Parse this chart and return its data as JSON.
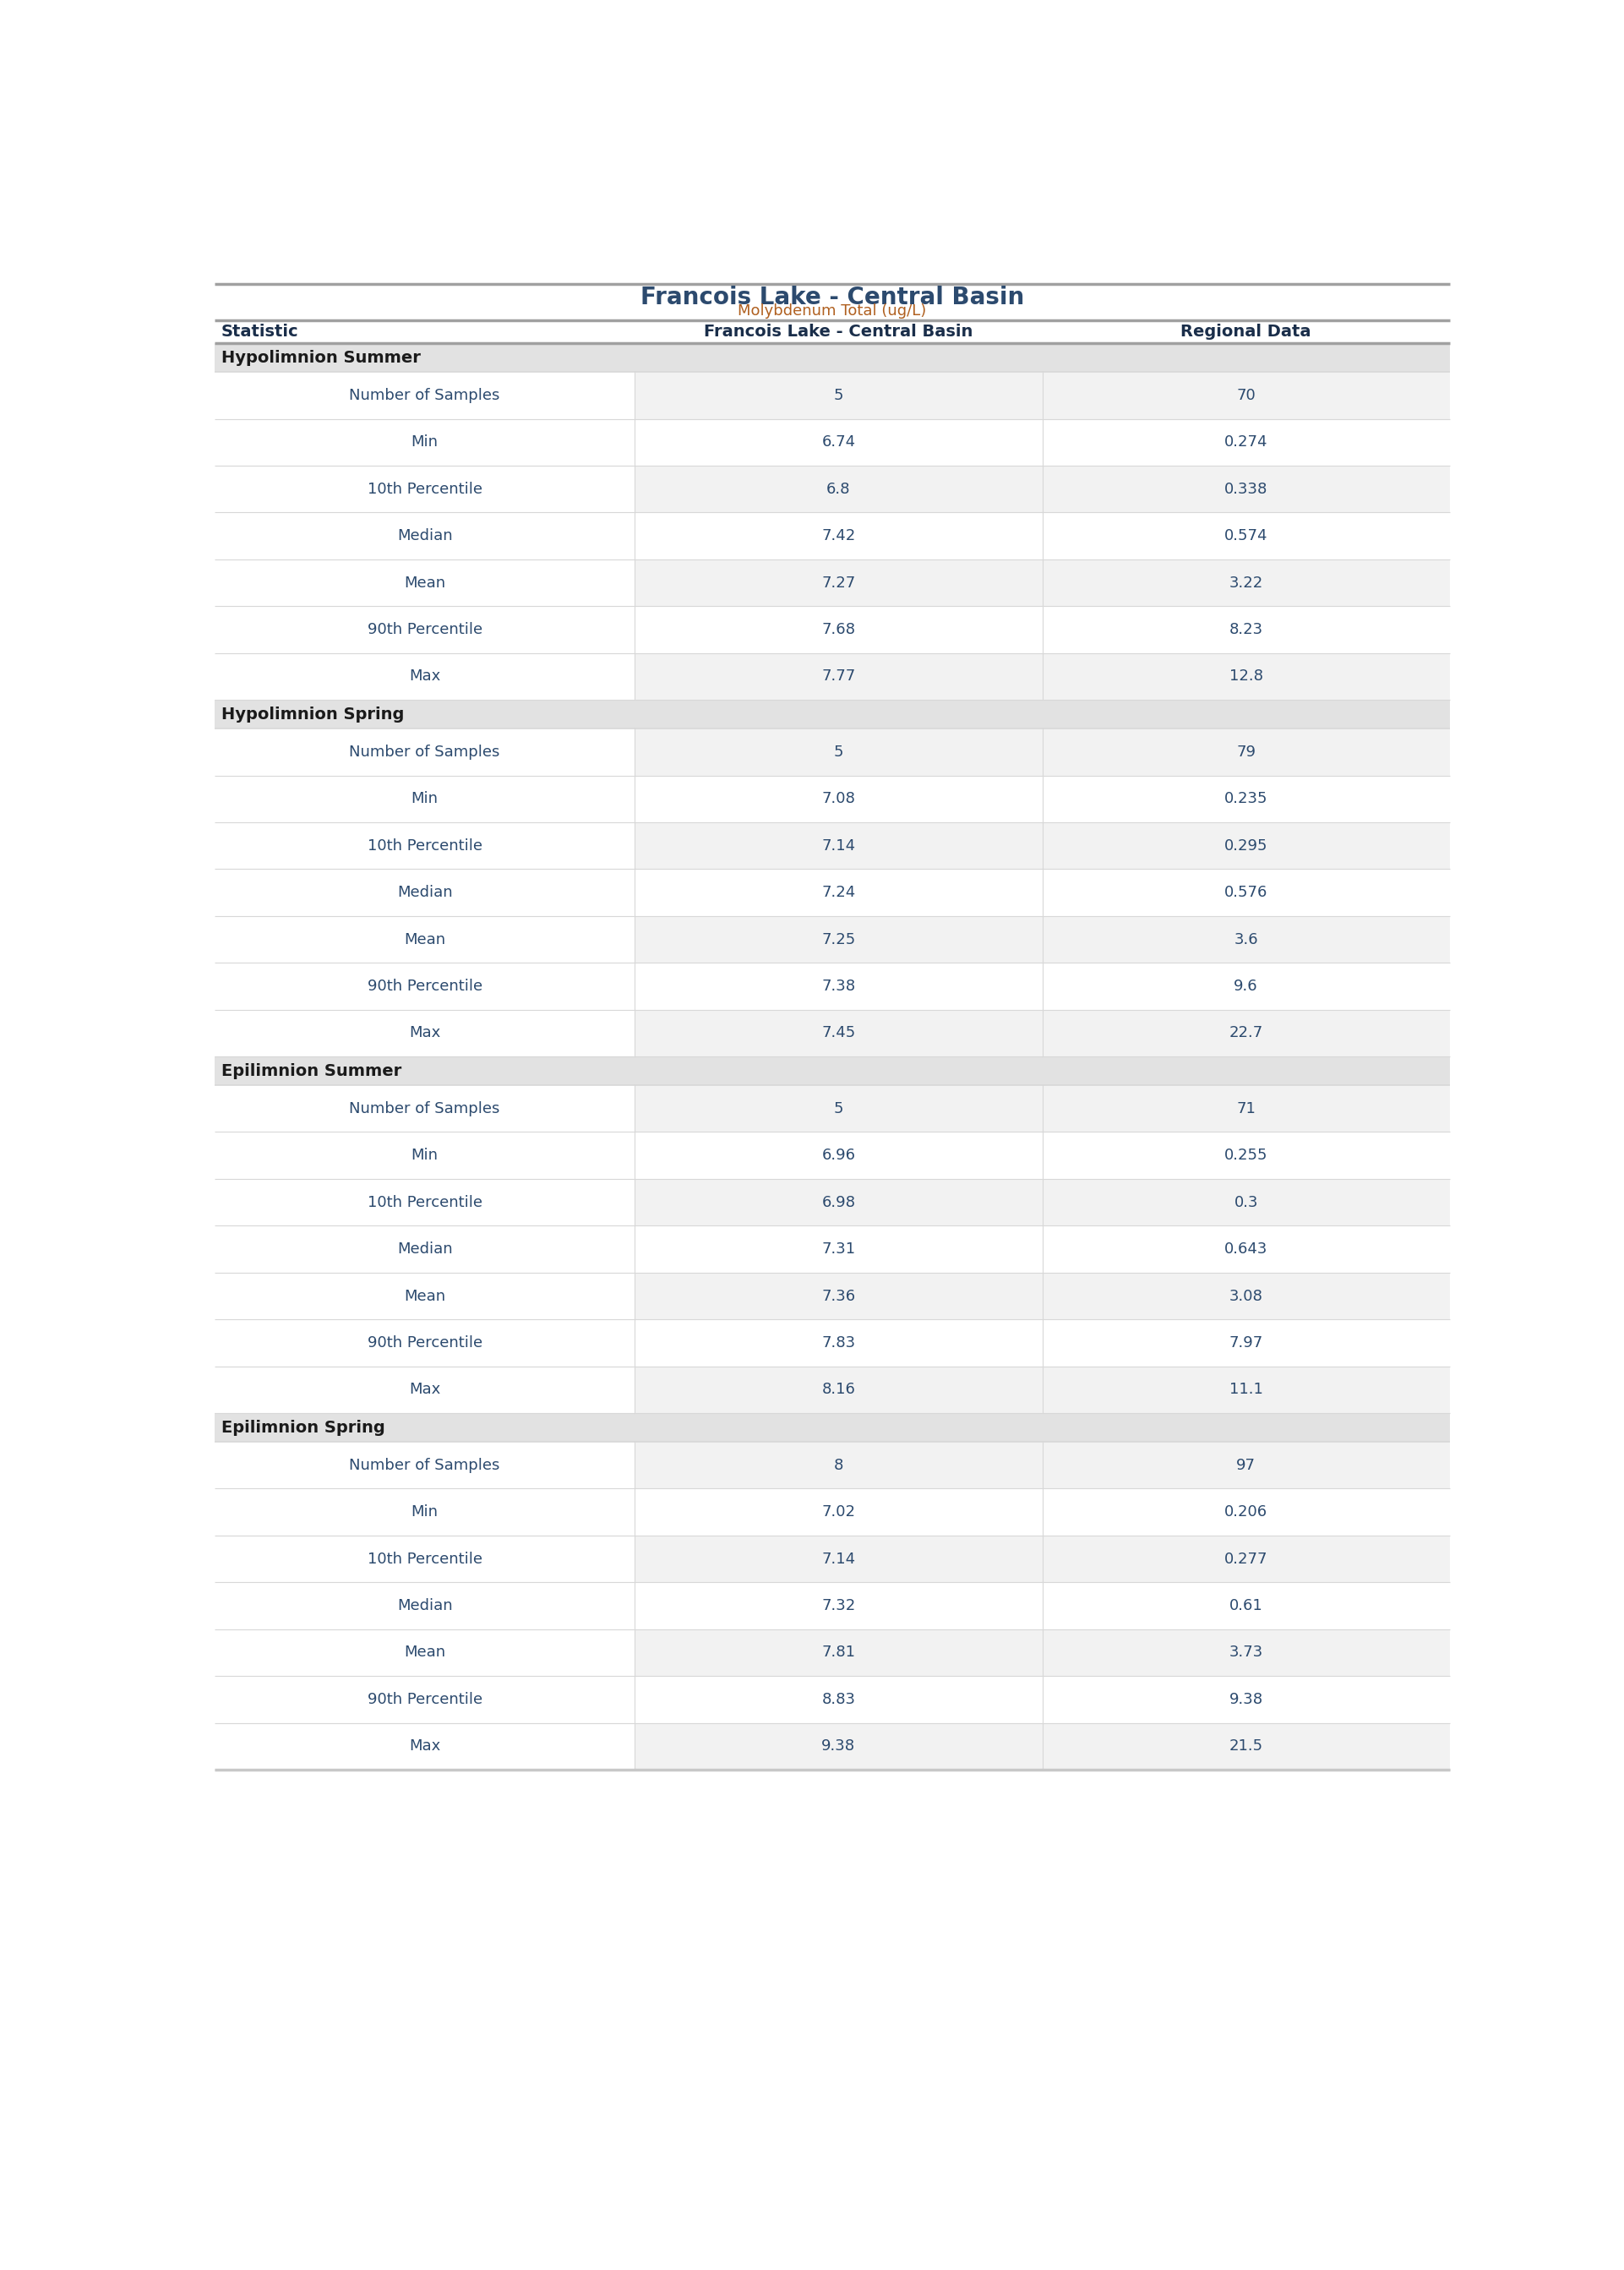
{
  "title": "Francois Lake - Central Basin",
  "subtitle": "Molybdenum Total (ug/L)",
  "col_headers": [
    "Statistic",
    "Francois Lake - Central Basin",
    "Regional Data"
  ],
  "sections": [
    {
      "section_title": "Hypolimnion Summer",
      "rows": [
        [
          "Number of Samples",
          "5",
          "70"
        ],
        [
          "Min",
          "6.74",
          "0.274"
        ],
        [
          "10th Percentile",
          "6.8",
          "0.338"
        ],
        [
          "Median",
          "7.42",
          "0.574"
        ],
        [
          "Mean",
          "7.27",
          "3.22"
        ],
        [
          "90th Percentile",
          "7.68",
          "8.23"
        ],
        [
          "Max",
          "7.77",
          "12.8"
        ]
      ]
    },
    {
      "section_title": "Hypolimnion Spring",
      "rows": [
        [
          "Number of Samples",
          "5",
          "79"
        ],
        [
          "Min",
          "7.08",
          "0.235"
        ],
        [
          "10th Percentile",
          "7.14",
          "0.295"
        ],
        [
          "Median",
          "7.24",
          "0.576"
        ],
        [
          "Mean",
          "7.25",
          "3.6"
        ],
        [
          "90th Percentile",
          "7.38",
          "9.6"
        ],
        [
          "Max",
          "7.45",
          "22.7"
        ]
      ]
    },
    {
      "section_title": "Epilimnion Summer",
      "rows": [
        [
          "Number of Samples",
          "5",
          "71"
        ],
        [
          "Min",
          "6.96",
          "0.255"
        ],
        [
          "10th Percentile",
          "6.98",
          "0.3"
        ],
        [
          "Median",
          "7.31",
          "0.643"
        ],
        [
          "Mean",
          "7.36",
          "3.08"
        ],
        [
          "90th Percentile",
          "7.83",
          "7.97"
        ],
        [
          "Max",
          "8.16",
          "11.1"
        ]
      ]
    },
    {
      "section_title": "Epilimnion Spring",
      "rows": [
        [
          "Number of Samples",
          "8",
          "97"
        ],
        [
          "Min",
          "7.02",
          "0.206"
        ],
        [
          "10th Percentile",
          "7.14",
          "0.277"
        ],
        [
          "Median",
          "7.32",
          "0.61"
        ],
        [
          "Mean",
          "7.81",
          "3.73"
        ],
        [
          "90th Percentile",
          "8.83",
          "9.38"
        ],
        [
          "Max",
          "9.38",
          "21.5"
        ]
      ]
    }
  ],
  "bg_color": "#ffffff",
  "section_bg": "#e2e2e2",
  "row_bg_odd": "#f2f2f2",
  "row_bg_even": "#ffffff",
  "top_border_color": "#a0a0a0",
  "bottom_border_color": "#c8c8c8",
  "row_divider_color": "#d8d8d8",
  "title_color": "#2c4a6e",
  "subtitle_color": "#b06020",
  "header_text_color": "#1a2e4a",
  "section_title_color": "#1a1a1a",
  "stat_name_color": "#2c4a6e",
  "value_color": "#2c4a6e",
  "title_fontsize": 20,
  "subtitle_fontsize": 13,
  "header_fontsize": 14,
  "section_fontsize": 14,
  "data_fontsize": 13,
  "col_split1": 0.34,
  "col_split2": 0.67
}
